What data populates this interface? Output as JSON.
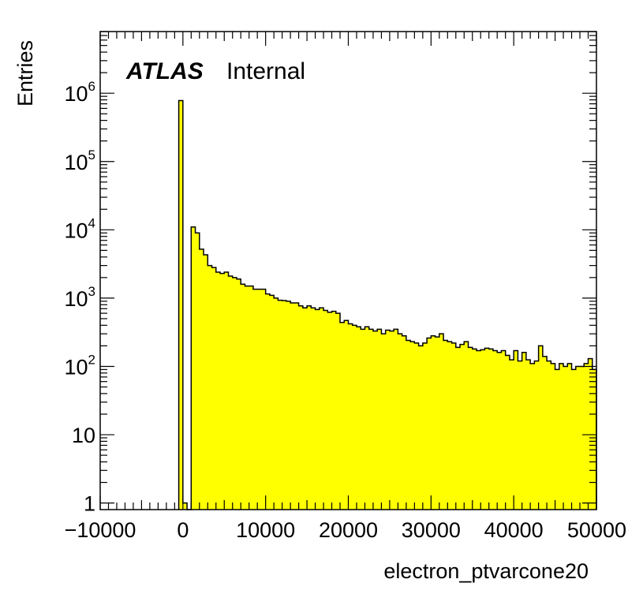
{
  "chart_data": {
    "type": "bar",
    "title": "",
    "xlabel": "electron_ptvarcone20",
    "ylabel": "Entries",
    "xlim": [
      -10000,
      50000
    ],
    "ylim": [
      0.8,
      8000000
    ],
    "log_y": true,
    "grid": false,
    "legend": "none",
    "fill_color": "#ffff00",
    "line_color": "#000000",
    "x_ticks": [
      -10000,
      0,
      10000,
      20000,
      30000,
      40000,
      50000
    ],
    "x_tick_labels": [
      "−10000",
      "0",
      "10000",
      "20000",
      "30000",
      "40000",
      "50000"
    ],
    "y_ticks": [
      {
        "value": 1,
        "base": "1",
        "exp": ""
      },
      {
        "value": 10,
        "base": "10",
        "exp": ""
      },
      {
        "value": 100,
        "base": "10",
        "exp": "2"
      },
      {
        "value": 1000,
        "base": "10",
        "exp": "3"
      },
      {
        "value": 10000,
        "base": "10",
        "exp": "4"
      },
      {
        "value": 100000,
        "base": "10",
        "exp": "5"
      },
      {
        "value": 1000000,
        "base": "10",
        "exp": "6"
      }
    ],
    "bin_width": 500,
    "bins_low_edges": [
      -500,
      0,
      500,
      1000,
      1500,
      2000,
      2500,
      3000,
      3500,
      4000,
      4500,
      5000,
      5500,
      6000,
      6500,
      7000,
      7500,
      8000,
      8500,
      9000,
      9500,
      10000,
      10500,
      11000,
      11500,
      12000,
      12500,
      13000,
      13500,
      14000,
      14500,
      15000,
      15500,
      16000,
      16500,
      17000,
      17500,
      18000,
      18500,
      19000,
      19500,
      20000,
      20500,
      21000,
      21500,
      22000,
      22500,
      23000,
      23500,
      24000,
      24500,
      25000,
      25500,
      26000,
      26500,
      27000,
      27500,
      28000,
      28500,
      29000,
      29500,
      30000,
      30500,
      31000,
      31500,
      32000,
      32500,
      33000,
      33500,
      34000,
      34500,
      35000,
      35500,
      36000,
      36500,
      37000,
      37500,
      38000,
      38500,
      39000,
      39500,
      40000,
      40500,
      41000,
      41500,
      42000,
      42500,
      43000,
      43500,
      44000,
      44500,
      45000,
      45500,
      46000,
      46500,
      47000,
      47500,
      48000,
      48500,
      49000,
      49500
    ],
    "values": [
      780000,
      1,
      0,
      11000,
      9000,
      5200,
      4300,
      3000,
      2800,
      2400,
      2300,
      2400,
      2100,
      2000,
      1900,
      1600,
      1500,
      1500,
      1350,
      1350,
      1350,
      1150,
      1100,
      1000,
      930,
      920,
      900,
      850,
      850,
      770,
      720,
      770,
      720,
      680,
      720,
      660,
      620,
      640,
      600,
      440,
      470,
      420,
      400,
      380,
      350,
      380,
      350,
      330,
      350,
      300,
      340,
      330,
      350,
      300,
      280,
      240,
      230,
      220,
      200,
      220,
      260,
      280,
      270,
      300,
      240,
      230,
      220,
      190,
      210,
      230,
      190,
      180,
      170,
      175,
      185,
      180,
      170,
      160,
      170,
      145,
      125,
      170,
      120,
      160,
      125,
      110,
      120,
      200,
      140,
      120,
      110,
      90,
      110,
      100,
      110,
      90,
      100,
      100,
      110,
      130,
      90
    ]
  },
  "annotations": {
    "atlas": "ATLAS",
    "internal": "Internal"
  }
}
